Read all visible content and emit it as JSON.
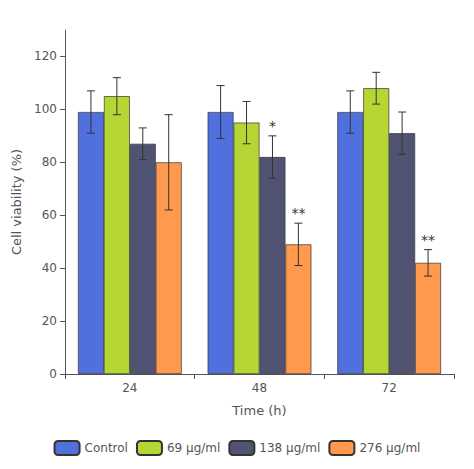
{
  "chart_data": {
    "type": "bar",
    "categories": [
      "24",
      "48",
      "72"
    ],
    "series": [
      {
        "name": "Control",
        "values": [
          99,
          99,
          99
        ],
        "errors": [
          8,
          10,
          8
        ]
      },
      {
        "name": "69 μg/ml",
        "values": [
          105,
          95,
          108
        ],
        "errors": [
          7,
          8,
          6
        ]
      },
      {
        "name": "138 μg/ml",
        "values": [
          87,
          82,
          91
        ],
        "errors": [
          6,
          8,
          8
        ]
      },
      {
        "name": "276 μg/ml",
        "values": [
          80,
          49,
          42
        ],
        "errors": [
          18,
          8,
          5
        ]
      }
    ],
    "annotations": [
      {
        "text": "*",
        "series": "138 μg/ml",
        "category": "48"
      },
      {
        "text": "**",
        "series": "276 μg/ml",
        "category": "48"
      },
      {
        "text": "**",
        "series": "276 μg/ml",
        "category": "72"
      }
    ],
    "xlabel": "Time (h)",
    "ylabel": "Cell viability (%)",
    "ylim": [
      0,
      130
    ],
    "yticks": [
      0,
      20,
      40,
      60,
      80,
      100,
      120
    ],
    "grid": false,
    "legend": "bottom"
  }
}
